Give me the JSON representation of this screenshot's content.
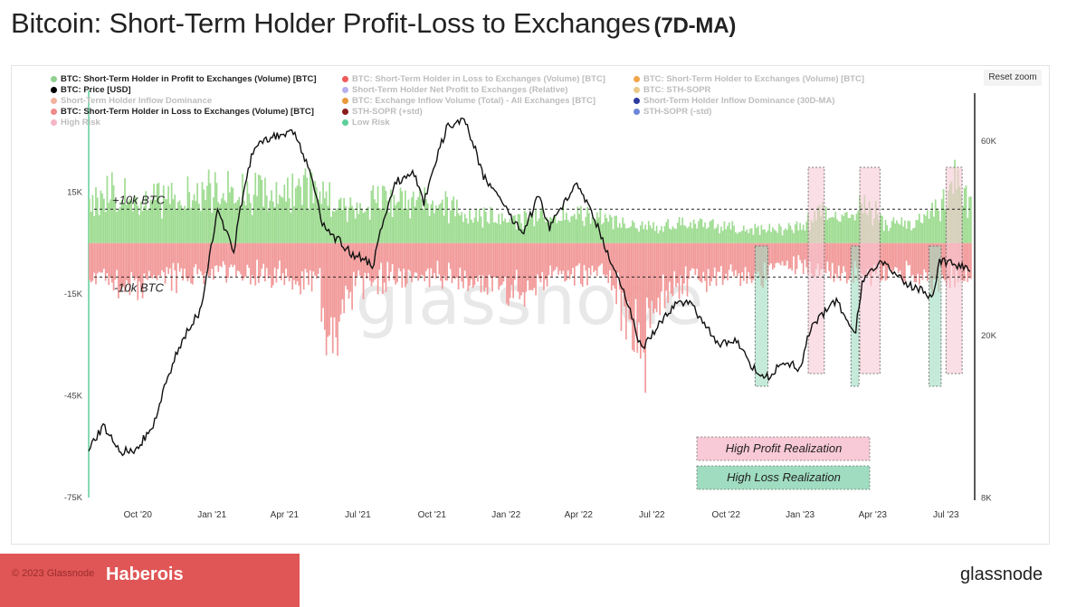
{
  "title": "Bitcoin: Short-Term Holder Profit-Loss to Exchanges",
  "title_suffix": "(7D-MA)",
  "reset_zoom": "Reset zoom",
  "watermark": "glassnode",
  "footer": {
    "copyright": "© 2023 Glassnode",
    "author": "Haberois"
  },
  "brand": "glassnode",
  "legend": [
    {
      "label": "BTC: Short-Term Holder in Profit to Exchanges (Volume) [BTC]",
      "color": "#8fd18f",
      "active": true
    },
    {
      "label": "BTC: Short-Term Holder in Loss to Exchanges (Volume) [BTC]",
      "color": "#ef5b5b",
      "active": false
    },
    {
      "label": "BTC: Short-Term Holder to Exchanges (Volume) [BTC]",
      "color": "#f2a64a",
      "active": false
    },
    {
      "label": "BTC: Price [USD]",
      "color": "#000000",
      "active": true
    },
    {
      "label": "Short-Term Holder Net Profit to Exchanges (Relative)",
      "color": "#b7b0ee",
      "active": false
    },
    {
      "label": "BTC: STH-SOPR",
      "color": "#e9c98a",
      "active": false
    },
    {
      "label": "Short-Term Holder Inflow Dominance",
      "color": "#f2b39e",
      "active": false
    },
    {
      "label": "BTC: Exchange Inflow Volume (Total) - All Exchanges [BTC]",
      "color": "#e99a3c",
      "active": false
    },
    {
      "label": "Short-Term Holder Inflow Dominance (30D-MA)",
      "color": "#2c3a9e",
      "active": false
    },
    {
      "label": "BTC: Short-Term Holder in Loss to Exchanges (Volume) [BTC]",
      "color": "#f08a8a",
      "active": true
    },
    {
      "label": "STH-SOPR (+std)",
      "color": "#8b1d1d",
      "active": false
    },
    {
      "label": "STH-SOPR (-std)",
      "color": "#6e86d8",
      "active": false
    },
    {
      "label": "High Risk",
      "color": "#f4b6c6",
      "active": false
    },
    {
      "label": "Low Risk",
      "color": "#5fcf9a",
      "active": false
    }
  ],
  "annotations": {
    "upper_line": "+10k BTC",
    "lower_line": "-10k BTC",
    "high_profit": "High Profit Realization",
    "high_loss": "High Loss Realization"
  },
  "colors": {
    "profit": "#9fdc92",
    "loss": "#f29a9a",
    "price": "#111111",
    "high_risk": "#f8c9d6",
    "low_risk": "#9fdcc0"
  },
  "chart_data": {
    "type": "bar",
    "x_ticks": [
      "Oct '20",
      "Jan '21",
      "Apr '21",
      "Jul '21",
      "Oct '21",
      "Jan '22",
      "Apr '22",
      "Jul '22",
      "Oct '22",
      "Jan '23",
      "Apr '23",
      "Jul '23"
    ],
    "y_left_ticks": [
      "15K",
      "-15K",
      "-45K",
      "-75K"
    ],
    "y_left_range": [
      -75000,
      22000
    ],
    "y_right_ticks": [
      "60K",
      "20K",
      "8K"
    ],
    "y_right_scale": "log",
    "y_right_range": [
      8000,
      68000
    ],
    "reference_lines": [
      10000,
      -10000
    ],
    "profit_series": {
      "name": "BTC: Short-Term Holder in Profit to Exchanges (Volume) [BTC]",
      "x": [
        "2020-08-01",
        "2020-08-20",
        "2020-10-01",
        "2020-11-15",
        "2020-12-20",
        "2021-01-10",
        "2021-02-10",
        "2021-03-10",
        "2021-04-15",
        "2021-05-10",
        "2021-06-15",
        "2021-07-20",
        "2021-09-01",
        "2021-10-15",
        "2021-11-15",
        "2022-01-01",
        "2022-03-01",
        "2022-04-01",
        "2022-05-01",
        "2022-06-15",
        "2022-08-01",
        "2022-10-01",
        "2022-11-10",
        "2022-12-15",
        "2023-01-10",
        "2023-01-25",
        "2023-02-20",
        "2023-03-20",
        "2023-04-15",
        "2023-05-15",
        "2023-06-20",
        "2023-07-10",
        "2023-07-31"
      ],
      "y": [
        12000,
        20000,
        15000,
        17000,
        20000,
        19000,
        18000,
        19500,
        19000,
        20000,
        12000,
        15000,
        15000,
        14000,
        10000,
        9000,
        10000,
        11000,
        9000,
        6000,
        7000,
        6000,
        5000,
        5000,
        8000,
        12000,
        9000,
        15000,
        8000,
        7000,
        12000,
        22000,
        12000
      ]
    },
    "loss_series": {
      "name": "BTC: Short-Term Holder in Loss to Exchanges (Volume) [BTC]",
      "x": [
        "2020-08-01",
        "2020-09-10",
        "2020-10-01",
        "2020-11-01",
        "2021-01-01",
        "2021-02-01",
        "2021-04-01",
        "2021-05-15",
        "2021-05-20",
        "2021-06-15",
        "2021-07-20",
        "2021-09-01",
        "2021-12-01",
        "2022-01-20",
        "2022-03-01",
        "2022-05-10",
        "2022-06-15",
        "2022-06-18",
        "2022-07-01",
        "2022-08-01",
        "2022-10-01",
        "2022-11-10",
        "2022-12-01",
        "2023-01-01",
        "2023-03-10",
        "2023-05-01",
        "2023-06-10",
        "2023-07-31"
      ],
      "y": [
        -10000,
        -15000,
        -15000,
        -14000,
        -10000,
        -11000,
        -12000,
        -15000,
        -45000,
        -20000,
        -14000,
        -11000,
        -13000,
        -18000,
        -11000,
        -12000,
        -42000,
        -48000,
        -20000,
        -15000,
        -11000,
        -14000,
        -10000,
        -8000,
        -12000,
        -10000,
        -14000,
        -13000
      ]
    },
    "price_series": {
      "name": "BTC: Price [USD]",
      "x": [
        "2020-08-01",
        "2020-08-20",
        "2020-09-10",
        "2020-10-01",
        "2020-10-20",
        "2020-11-20",
        "2020-12-20",
        "2021-01-08",
        "2021-01-28",
        "2021-02-21",
        "2021-03-13",
        "2021-04-14",
        "2021-05-19",
        "2021-06-22",
        "2021-07-20",
        "2021-08-15",
        "2021-09-07",
        "2021-09-21",
        "2021-10-20",
        "2021-11-10",
        "2021-12-04",
        "2022-01-22",
        "2022-02-10",
        "2022-02-24",
        "2022-03-29",
        "2022-05-10",
        "2022-06-18",
        "2022-07-30",
        "2022-08-15",
        "2022-09-20",
        "2022-10-15",
        "2022-11-09",
        "2022-11-21",
        "2022-12-15",
        "2023-01-01",
        "2023-01-14",
        "2023-02-15",
        "2023-03-10",
        "2023-03-20",
        "2023-04-14",
        "2023-05-12",
        "2023-06-15",
        "2023-06-23",
        "2023-07-31"
      ],
      "y": [
        10500,
        12000,
        10400,
        10600,
        12000,
        18500,
        23500,
        40000,
        32000,
        57000,
        61000,
        63500,
        37000,
        32000,
        29800,
        47000,
        51000,
        42000,
        65000,
        68000,
        49000,
        35000,
        44000,
        37000,
        47000,
        31000,
        18500,
        24000,
        24300,
        19000,
        19300,
        16000,
        15800,
        17300,
        16500,
        21000,
        24500,
        20000,
        27500,
        30400,
        26700,
        25000,
        30500,
        29200
      ]
    },
    "high_risk_zones": [
      [
        "2023-01-11",
        "2023-01-31"
      ],
      [
        "2023-03-16",
        "2023-04-10"
      ],
      [
        "2023-07-01",
        "2023-07-21"
      ]
    ],
    "low_risk_zones": [
      [
        "2022-11-06",
        "2022-11-22"
      ],
      [
        "2023-03-05",
        "2023-03-15"
      ],
      [
        "2023-06-10",
        "2023-06-25"
      ]
    ]
  }
}
